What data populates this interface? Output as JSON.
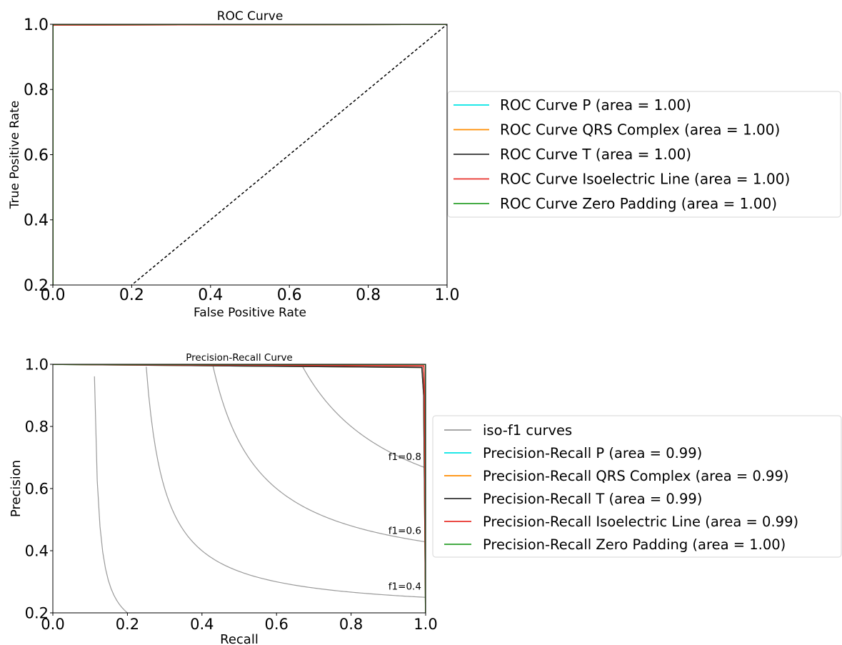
{
  "chart_data": [
    {
      "type": "line",
      "title": "ROC Curve",
      "xlabel": "False Positive Rate",
      "ylabel": "True Positive Rate",
      "xlim": [
        0.0,
        1.0
      ],
      "ylim": [
        0.2,
        1.0
      ],
      "xticks": [
        "0.0",
        "0.2",
        "0.4",
        "0.6",
        "0.8",
        "1.0"
      ],
      "yticks": [
        "0.2",
        "0.4",
        "0.6",
        "0.8",
        "1.0"
      ],
      "grid": false,
      "legend_position": "outside-right",
      "diagonal": {
        "x": [
          0.0,
          1.0
        ],
        "y": [
          0.0,
          1.0
        ],
        "color": "#000000",
        "style": "dashed"
      },
      "series": [
        {
          "name": "ROC Curve P (area = 1.00)",
          "color": "#00e5e5",
          "x": [
            0.0,
            0.0,
            0.003,
            1.0
          ],
          "y": [
            0.0,
            0.996,
            0.998,
            1.0
          ]
        },
        {
          "name": "ROC Curve QRS Complex (area = 1.00)",
          "color": "#ff8c00",
          "x": [
            0.0,
            0.0,
            0.003,
            1.0
          ],
          "y": [
            0.0,
            0.996,
            0.998,
            1.0
          ]
        },
        {
          "name": "ROC Curve T (area = 1.00)",
          "color": "#333333",
          "x": [
            0.0,
            0.0,
            0.003,
            1.0
          ],
          "y": [
            0.0,
            0.996,
            0.998,
            1.0
          ]
        },
        {
          "name": "ROC Curve Isoelectric Line (area = 1.00)",
          "color": "#e8322b",
          "x": [
            0.0,
            0.0,
            0.003,
            1.0
          ],
          "y": [
            0.0,
            0.996,
            0.998,
            1.0
          ]
        },
        {
          "name": "ROC Curve Zero Padding (area = 1.00)",
          "color": "#2ca02c",
          "x": [
            0.0,
            0.0,
            1.0
          ],
          "y": [
            0.0,
            1.0,
            1.0
          ]
        }
      ]
    },
    {
      "type": "line",
      "title": "Precision-Recall Curve",
      "xlabel": "Recall",
      "ylabel": "Precision",
      "xlim": [
        0.0,
        1.0
      ],
      "ylim": [
        0.2,
        1.0
      ],
      "xticks": [
        "0.0",
        "0.2",
        "0.4",
        "0.6",
        "0.8",
        "1.0"
      ],
      "yticks": [
        "0.2",
        "0.4",
        "0.6",
        "0.8",
        "1.0"
      ],
      "grid": false,
      "legend_position": "outside-right",
      "iso_f1": [
        {
          "f1": 0.2,
          "label": ""
        },
        {
          "f1": 0.4,
          "label": "f1=0.4"
        },
        {
          "f1": 0.6,
          "label": "f1=0.6"
        },
        {
          "f1": 0.8,
          "label": "f1=0.8"
        }
      ],
      "iso_f1_legend": "iso-f1 curves",
      "iso_f1_color": "#9a9a9a",
      "series": [
        {
          "name": "Precision-Recall P (area = 0.99)",
          "color": "#00e5e5",
          "x": [
            0.0,
            0.5,
            0.99,
            0.995,
            1.0
          ],
          "y": [
            1.0,
            0.995,
            0.99,
            0.9,
            0.2
          ]
        },
        {
          "name": "Precision-Recall QRS Complex (area = 0.99)",
          "color": "#ff8c00",
          "x": [
            0.0,
            0.5,
            0.99,
            0.995,
            1.0
          ],
          "y": [
            1.0,
            0.995,
            0.99,
            0.9,
            0.2
          ]
        },
        {
          "name": "Precision-Recall T (area = 0.99)",
          "color": "#333333",
          "x": [
            0.0,
            0.5,
            0.99,
            0.995,
            1.0
          ],
          "y": [
            1.0,
            0.995,
            0.99,
            0.9,
            0.2
          ]
        },
        {
          "name": "Precision-Recall Isoelectric Line (area = 0.99)",
          "color": "#e8322b",
          "x": [
            0.0,
            0.5,
            0.995,
            0.997,
            1.0
          ],
          "y": [
            1.0,
            0.998,
            0.995,
            0.9,
            0.2
          ]
        },
        {
          "name": "Precision-Recall Zero Padding (area = 1.00)",
          "color": "#2ca02c",
          "x": [
            0.0,
            1.0,
            1.0
          ],
          "y": [
            1.0,
            1.0,
            0.2
          ]
        }
      ]
    }
  ]
}
